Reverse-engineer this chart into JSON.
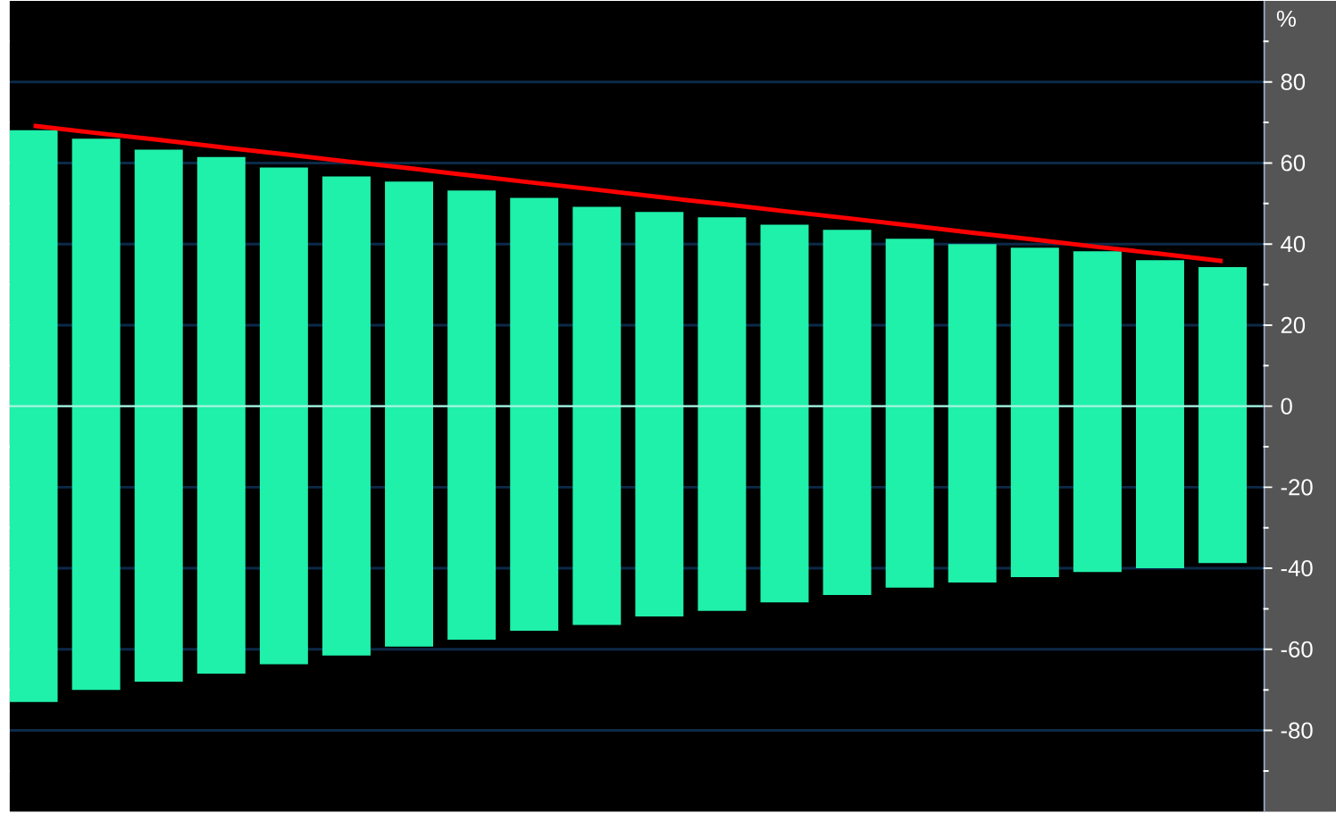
{
  "chart_data": {
    "type": "bar",
    "ylabel": "%",
    "categories": [
      null,
      null,
      null,
      null,
      null,
      null,
      null,
      null,
      null,
      null,
      null,
      null,
      null,
      null,
      null,
      null,
      null,
      null,
      null,
      null
    ],
    "series": [
      {
        "color": "#1ff0aa",
        "values": [
          141.1,
          136,
          131.3,
          127.5,
          122.6,
          118.2,
          114.7,
          110.8,
          106.8,
          103.2,
          99.8,
          97.1,
          93.2,
          90.1,
          86.1,
          83.5,
          81.3,
          79.1,
          76,
          73
        ],
        "base": [
          -73,
          -70,
          -68,
          -66,
          -63.7,
          -61.5,
          -59.3,
          -57.6,
          -55.4,
          -54,
          -51.9,
          -50.5,
          -48.4,
          -46.6,
          -44.8,
          -43.5,
          -42.2,
          -40.9,
          -40,
          -38.7
        ]
      },
      {
        "type": "line",
        "color": "#ff0000",
        "values": [
          69.2,
          67.4,
          65.7,
          63.9,
          62.2,
          60.4,
          58.7,
          56.9,
          55.1,
          53.4,
          51.6,
          49.9,
          48.1,
          46.4,
          44.6,
          42.8,
          41.1,
          39.3,
          37.6,
          35.8
        ]
      }
    ],
    "ylim": [
      -100,
      100
    ],
    "yticks": [
      {
        "value": 90,
        "label": null
      },
      80,
      {
        "value": 70,
        "label": null
      },
      60,
      {
        "value": 50,
        "label": null
      },
      40,
      {
        "value": 30,
        "label": null
      },
      20,
      {
        "value": 10,
        "label": null
      },
      0,
      {
        "value": -10,
        "label": null
      },
      -20,
      {
        "value": -30,
        "label": null
      },
      -40,
      {
        "value": -50,
        "label": null
      },
      -60,
      {
        "value": -70,
        "label": null
      },
      -80,
      {
        "value": -90,
        "label": null
      }
    ],
    "ref_lines": [
      {
        "axis": "y",
        "value": 0,
        "color": "#a8f5dc"
      }
    ],
    "grid": "y",
    "tick_labels": "y"
  }
}
